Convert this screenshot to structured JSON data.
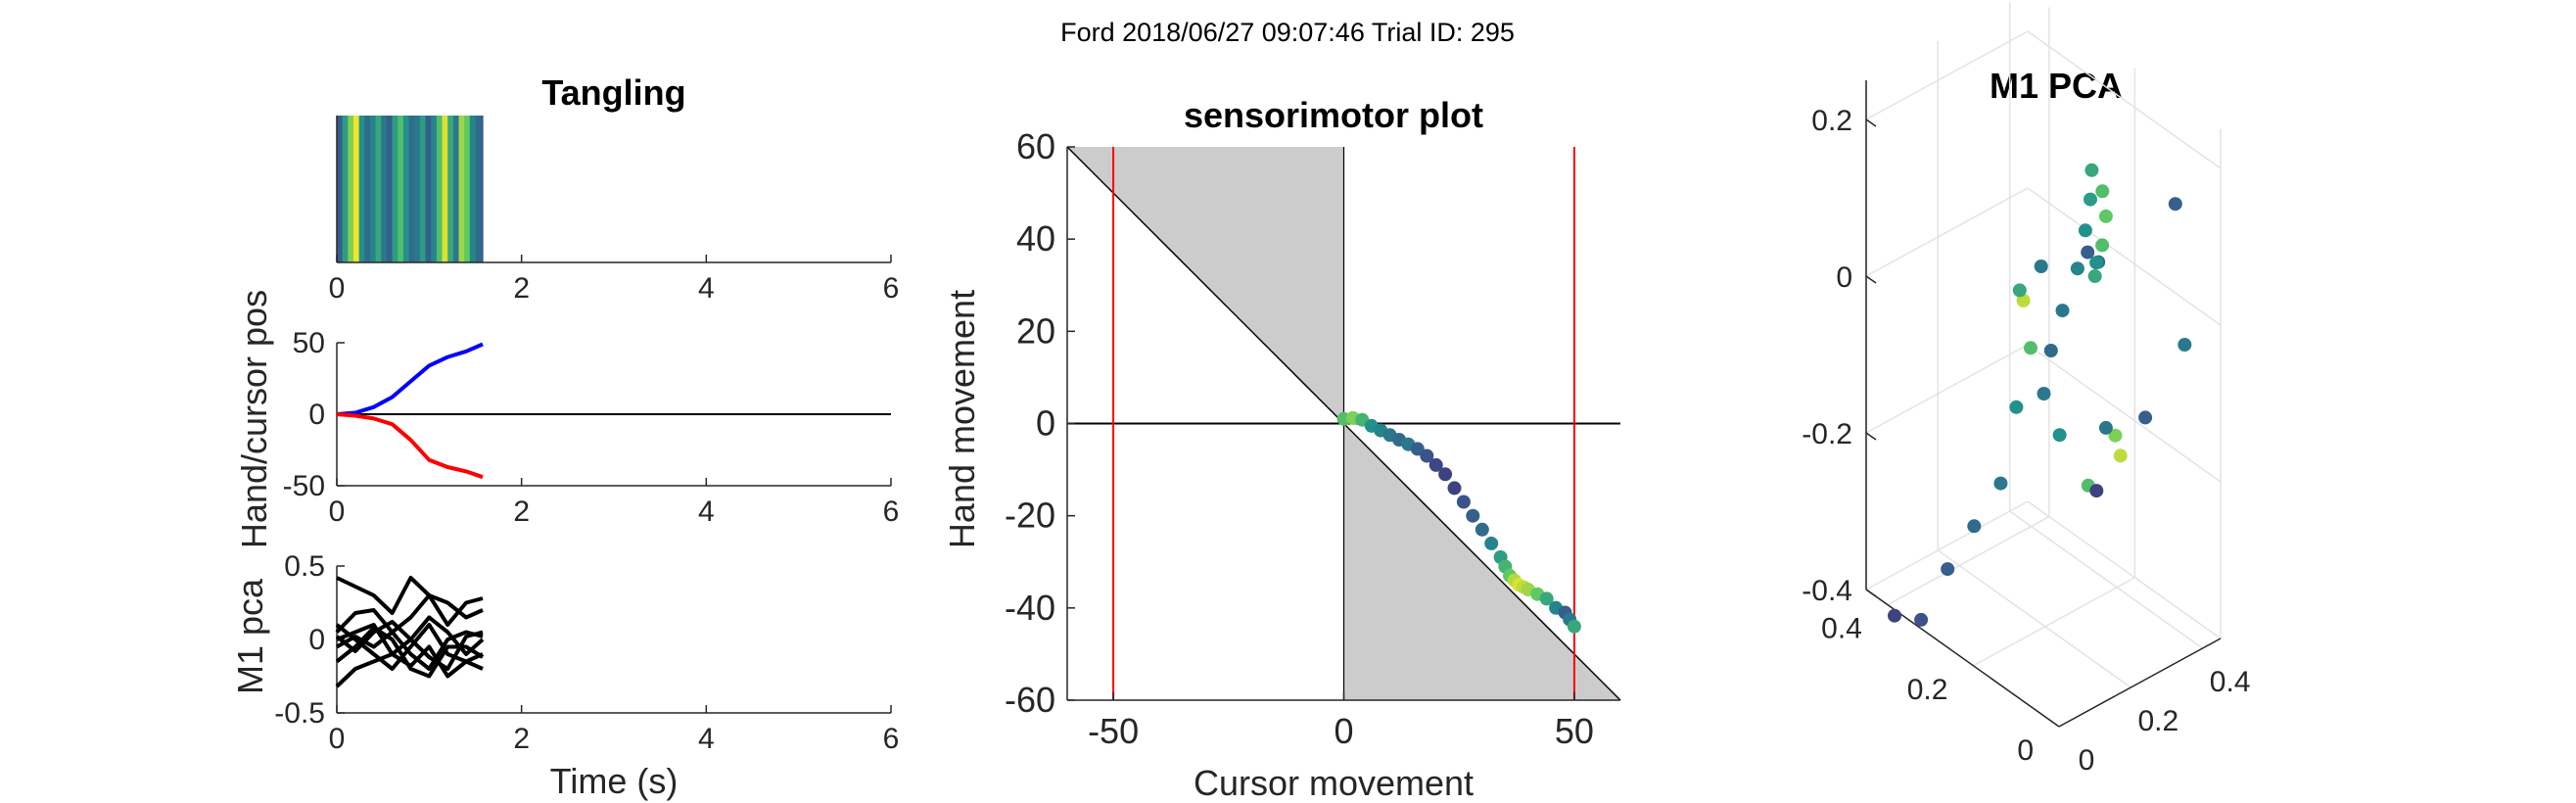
{
  "figure": {
    "suptitle": "Ford 2018/06/27 09:07:46 Trial ID: 295"
  },
  "colors": {
    "hand": "#0000ff",
    "cursor": "#ff0000",
    "zero_line": "#000000",
    "target": "#ff0000",
    "shade": "#cccccc",
    "viridis": [
      "#440154",
      "#3b528b",
      "#21918c",
      "#5ec962",
      "#fde725"
    ]
  },
  "chart_data": [
    {
      "id": "tangling",
      "type": "heatmap",
      "title": "Tangling",
      "xlim": [
        0,
        6
      ],
      "xticks": [
        "0",
        "2",
        "4",
        "6"
      ],
      "x_extent": [
        0,
        1.58
      ],
      "stripe_x": [
        0,
        0.06,
        0.12,
        0.18,
        0.24,
        0.3,
        0.36,
        0.42,
        0.48,
        0.54,
        0.6,
        0.66,
        0.72,
        0.78,
        0.84,
        0.9,
        0.96,
        1.02,
        1.08,
        1.14,
        1.2,
        1.26,
        1.32,
        1.38,
        1.44,
        1.5,
        1.56
      ],
      "stripe_values": [
        0.3,
        0.55,
        0.8,
        0.98,
        0.5,
        0.35,
        0.45,
        0.6,
        0.4,
        0.3,
        0.55,
        0.7,
        0.5,
        0.35,
        0.4,
        0.55,
        0.3,
        0.45,
        0.7,
        0.95,
        0.6,
        0.4,
        0.85,
        0.75,
        0.45,
        0.35,
        0.3
      ]
    },
    {
      "id": "hand-cursor",
      "type": "line",
      "title": "",
      "xlabel": "",
      "ylabel": "Hand/cursor pos",
      "xlim": [
        0,
        6
      ],
      "ylim": [
        -50,
        50
      ],
      "xticks": [
        "0",
        "2",
        "4",
        "6"
      ],
      "yticks": [
        "-50",
        "0",
        "50"
      ],
      "hline": 0,
      "series": [
        {
          "color": "#0000ff",
          "x": [
            0,
            0.2,
            0.4,
            0.6,
            0.8,
            1.0,
            1.2,
            1.4,
            1.58
          ],
          "y": [
            0,
            1,
            5,
            12,
            23,
            34,
            40,
            44,
            49
          ]
        },
        {
          "color": "#ff0000",
          "x": [
            0,
            0.2,
            0.4,
            0.6,
            0.8,
            1.0,
            1.2,
            1.4,
            1.58
          ],
          "y": [
            0,
            -1,
            -3,
            -7,
            -18,
            -32,
            -37,
            -40,
            -44
          ]
        }
      ]
    },
    {
      "id": "m1-pca-traces",
      "type": "line",
      "title": "",
      "xlabel": "Time (s)",
      "ylabel": "M1 pca",
      "xlim": [
        0,
        6
      ],
      "ylim": [
        -0.5,
        0.5
      ],
      "xticks": [
        "0",
        "2",
        "4",
        "6"
      ],
      "yticks": [
        "-0.5",
        "0",
        "0.5"
      ],
      "x": [
        0,
        0.2,
        0.4,
        0.6,
        0.8,
        1.0,
        1.2,
        1.4,
        1.58
      ],
      "series": [
        {
          "y": [
            0.42,
            0.36,
            0.3,
            0.18,
            0.42,
            0.3,
            0.1,
            0.25,
            0.28
          ]
        },
        {
          "y": [
            0.05,
            0.18,
            0.2,
            0.05,
            0.15,
            0.3,
            0.25,
            0.15,
            0.2
          ]
        },
        {
          "y": [
            0.0,
            0.05,
            0.1,
            -0.1,
            0.0,
            0.15,
            0.05,
            -0.1,
            0.0
          ]
        },
        {
          "y": [
            -0.05,
            0.02,
            -0.05,
            0.05,
            -0.1,
            -0.2,
            0.0,
            0.05,
            0.02
          ]
        },
        {
          "y": [
            0.1,
            0.0,
            -0.1,
            -0.2,
            -0.05,
            0.1,
            -0.1,
            -0.15,
            -0.2
          ]
        },
        {
          "y": [
            -0.32,
            -0.2,
            -0.15,
            -0.1,
            -0.18,
            -0.05,
            -0.25,
            -0.15,
            -0.1
          ]
        },
        {
          "y": [
            0.02,
            -0.08,
            0.05,
            0.12,
            0.0,
            -0.12,
            -0.2,
            0.02,
            0.05
          ]
        },
        {
          "y": [
            -0.15,
            -0.05,
            0.08,
            0.0,
            -0.2,
            -0.25,
            -0.05,
            -0.05,
            -0.12
          ]
        }
      ]
    },
    {
      "id": "sensorimotor",
      "type": "scatter",
      "title": "sensorimotor plot",
      "xlabel": "Cursor movement",
      "ylabel": "Hand movement",
      "xlim": [
        -60,
        60
      ],
      "ylim": [
        -60,
        60
      ],
      "xticks": [
        "-50",
        "0",
        "50"
      ],
      "yticks": [
        "-60",
        "-40",
        "-20",
        "0",
        "20",
        "40",
        "60"
      ],
      "shaded_regions": [
        "x<0 and y>-x",
        "x>0 and y<-x"
      ],
      "target_lines_x": [
        -50,
        50
      ],
      "points": {
        "x": [
          0,
          2,
          4,
          6,
          8,
          10,
          12,
          14,
          16,
          18,
          20,
          22,
          24,
          26,
          28,
          30,
          32,
          34,
          35,
          36,
          37,
          38,
          39,
          40,
          42,
          44,
          46,
          48,
          49,
          50
        ],
        "y": [
          1,
          1.2,
          0.8,
          -0.5,
          -1.5,
          -2.5,
          -3.5,
          -4.5,
          -5.5,
          -7,
          -9,
          -11,
          -14,
          -17,
          -20,
          -23,
          -26,
          -29,
          -31,
          -33,
          -34,
          -35,
          -35.5,
          -36,
          -37,
          -38,
          -40,
          -41,
          -42.5,
          -44
        ],
        "c": [
          0.7,
          0.8,
          0.65,
          0.5,
          0.45,
          0.4,
          0.35,
          0.4,
          0.3,
          0.25,
          0.22,
          0.2,
          0.2,
          0.25,
          0.3,
          0.35,
          0.45,
          0.55,
          0.65,
          0.75,
          0.88,
          0.95,
          0.9,
          0.85,
          0.75,
          0.6,
          0.45,
          0.3,
          0.4,
          0.6
        ]
      }
    },
    {
      "id": "m1-pca-3d",
      "type": "scatter",
      "title": "M1 PCA",
      "zticks": [
        "-0.4",
        "-0.2",
        "0",
        "0.2"
      ],
      "xticks_front": [
        "0",
        "0.2",
        "0.4"
      ],
      "yticks_left": [
        "0",
        "0.2",
        "0.4"
      ],
      "grid": true,
      "points": {
        "x": [
          -0.1,
          -0.05,
          0.0,
          0.05,
          0.1,
          0.12,
          0.1,
          0.02,
          -0.05,
          -0.05,
          0.02,
          0.05,
          0.08,
          0.1,
          0.18,
          0.25,
          0.3,
          0.33,
          0.35,
          0.36,
          0.35,
          0.32,
          0.3,
          0.28,
          0.3,
          0.32,
          0.35,
          0.3,
          0.25,
          0.2,
          0.3,
          0.35,
          0.3
        ],
        "y": [
          0.3,
          0.28,
          0.26,
          0.24,
          0.22,
          0.2,
          0.15,
          0.1,
          0.05,
          0.0,
          -0.05,
          -0.05,
          -0.02,
          0.0,
          0.05,
          0.1,
          0.15,
          0.2,
          0.22,
          0.24,
          0.25,
          0.26,
          0.27,
          0.27,
          0.25,
          0.2,
          0.15,
          0.12,
          0.1,
          0.08,
          0.05,
          0.0,
          -0.02
        ],
        "z": [
          -0.35,
          -0.36,
          -0.3,
          -0.25,
          -0.2,
          -0.1,
          0.0,
          0.1,
          0.15,
          0.2,
          0.22,
          0.2,
          0.18,
          0.15,
          0.15,
          0.15,
          0.15,
          0.15,
          0.1,
          0.05,
          0.0,
          -0.05,
          -0.1,
          -0.15,
          -0.2,
          -0.25,
          -0.2,
          -0.15,
          -0.12,
          -0.18,
          -0.1,
          0.0,
          0.2
        ],
        "c": [
          0.2,
          0.25,
          0.3,
          0.35,
          0.4,
          0.5,
          0.7,
          0.9,
          0.6,
          0.4,
          0.3,
          0.35,
          0.5,
          0.6,
          0.7,
          0.75,
          0.7,
          0.6,
          0.55,
          0.5,
          0.45,
          0.4,
          0.35,
          0.4,
          0.5,
          0.7,
          0.9,
          0.8,
          0.4,
          0.2,
          0.3,
          0.4,
          0.3
        ]
      }
    }
  ]
}
